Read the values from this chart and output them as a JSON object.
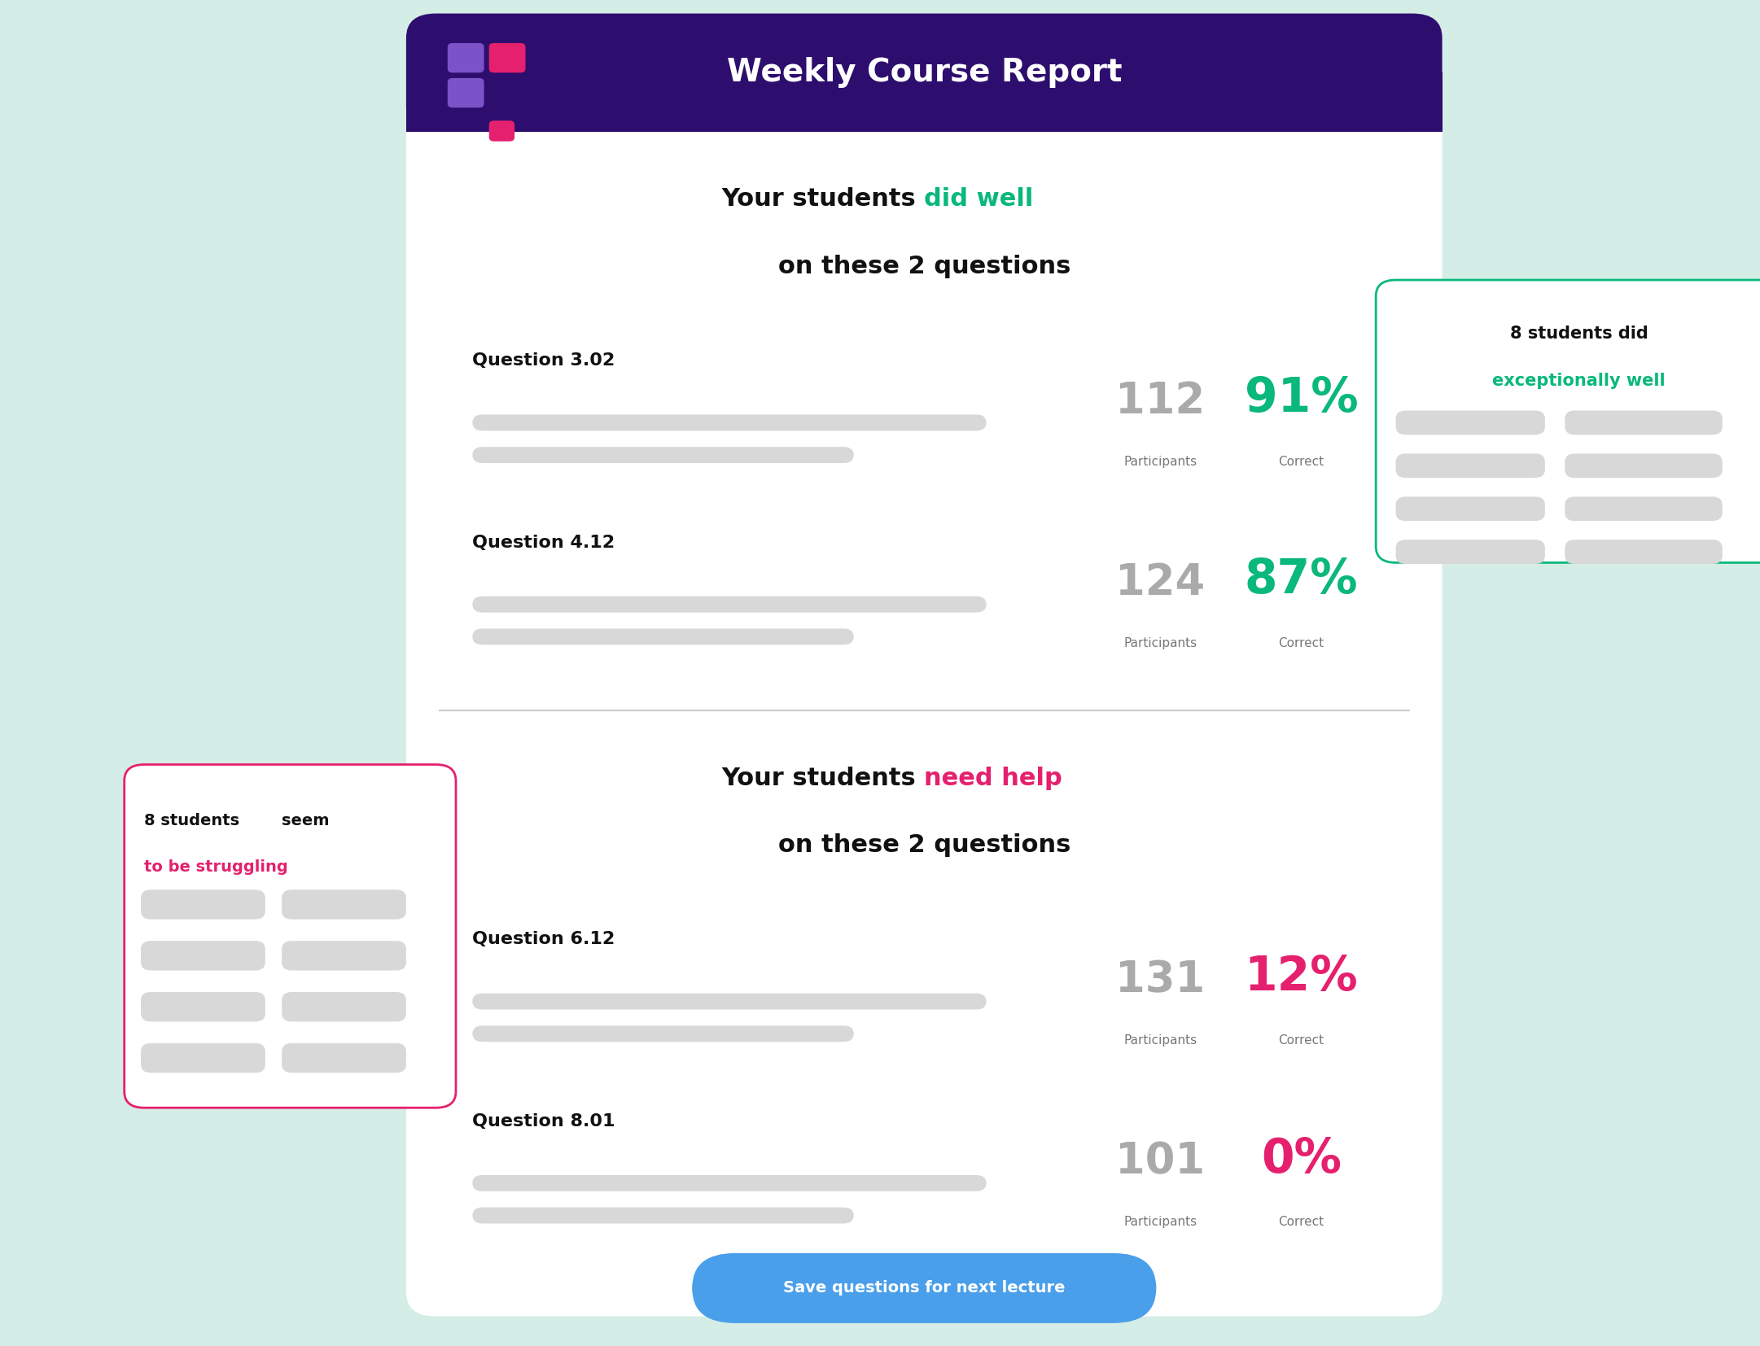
{
  "bg_color": "#d4ede6",
  "header_color": "#2d0e6e",
  "header_text": "Weekly Course Report",
  "header_text_color": "#ffffff",
  "main_bg": "#ffffff",
  "section1_title_color": "#09b87a",
  "section2_title_color": "#e5206e",
  "q1_label": "Question 3.02",
  "q1_participants": "112",
  "q1_correct": "91%",
  "q1_correct_color": "#09b87a",
  "q2_label": "Question 4.12",
  "q2_participants": "124",
  "q2_correct": "87%",
  "q2_correct_color": "#09b87a",
  "q3_label": "Question 6.12",
  "q3_participants": "131",
  "q3_correct": "12%",
  "q3_correct_color": "#e5206e",
  "q4_label": "Question 8.01",
  "q4_participants": "101",
  "q4_correct": "0%",
  "q4_correct_color": "#e5206e",
  "participants_color": "#aaaaaa",
  "participants_label": "Participants",
  "correct_label": "Correct",
  "sidebar_right_title1": "8 students did",
  "sidebar_right_title2": "exceptionally well",
  "sidebar_right_border": "#09b87a",
  "sidebar_right_title_color": "#09b87a",
  "sidebar_left_normal": "8 students ",
  "sidebar_left_bold2": "seem",
  "sidebar_left_line2": "to be struggling",
  "sidebar_left_border": "#e5206e",
  "sidebar_left_accent": "#e5206e",
  "button_text": "Save questions for next lecture",
  "button_color": "#4a9fea",
  "button_text_color": "#ffffff",
  "bar_color": "#d8d8d8",
  "logo_purple": "#7b52c8",
  "logo_pink": "#e5206e",
  "logo_blue": "#5252e8"
}
